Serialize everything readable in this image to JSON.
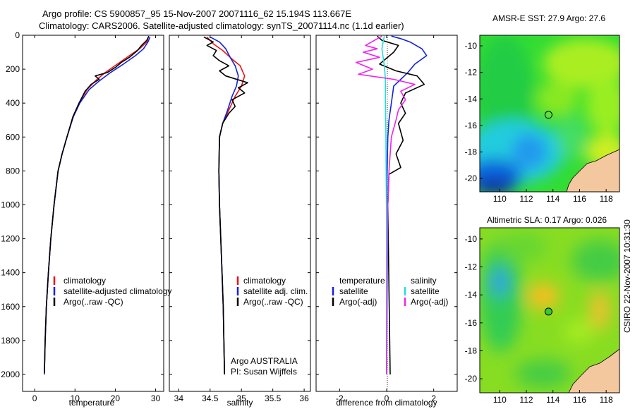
{
  "header": {
    "line1": "Argo profile: CS 5900857_95 15-Nov-2007 20071116_62 15.194S 113.667E",
    "line2": "Climatology: CARS2006. Satellite-adjusted climatology: synTS_20071114.nc (1.1d earlier)"
  },
  "side_text": "CSIRO 22-Nov-2007 10:31:30",
  "colors": {
    "climatology": "#ee1111",
    "satellite": "#1122dd",
    "argo": "#000000",
    "argo_sal": "#ee22ee",
    "sat_sal": "#22dddd"
  },
  "chart_data": [
    {
      "type": "line",
      "panel": "temperature",
      "xlabel": "temperature",
      "ylabel": "",
      "xlim": [
        -3,
        32
      ],
      "ylim": [
        2100,
        0
      ],
      "y_inverted": true,
      "xticks": [
        0,
        10,
        20,
        30
      ],
      "yticks": [
        0,
        200,
        400,
        600,
        800,
        1000,
        1200,
        1400,
        1600,
        1800,
        2000
      ],
      "legend": [
        "climatology",
        "satellite-adjusted climatology",
        "Argo(..raw -QC)"
      ],
      "series": [
        {
          "name": "climatology",
          "color": "#ee1111",
          "points": [
            [
              28.2,
              10
            ],
            [
              27.8,
              40
            ],
            [
              26,
              80
            ],
            [
              23.5,
              120
            ],
            [
              20.5,
              170
            ],
            [
              17.5,
              220
            ],
            [
              15,
              270
            ],
            [
              13,
              320
            ],
            [
              11,
              400
            ],
            [
              9.5,
              480
            ],
            [
              8,
              600
            ],
            [
              6.8,
              700
            ],
            [
              5.8,
              800
            ],
            [
              4.8,
              1000
            ],
            [
              4,
              1200
            ],
            [
              3.4,
              1400
            ],
            [
              2.9,
              1600
            ],
            [
              2.6,
              1800
            ],
            [
              2.4,
              2000
            ]
          ]
        },
        {
          "name": "satellite-adjusted climatology",
          "color": "#1122dd",
          "points": [
            [
              28.6,
              10
            ],
            [
              28.1,
              40
            ],
            [
              27,
              80
            ],
            [
              25,
              120
            ],
            [
              22,
              170
            ],
            [
              18.8,
              220
            ],
            [
              16,
              270
            ],
            [
              13.5,
              320
            ],
            [
              11.2,
              400
            ],
            [
              9.6,
              480
            ],
            [
              8,
              600
            ],
            [
              6.8,
              700
            ],
            [
              5.8,
              800
            ],
            [
              4.8,
              1000
            ],
            [
              4,
              1200
            ],
            [
              3.4,
              1400
            ],
            [
              2.9,
              1600
            ],
            [
              2.6,
              1800
            ],
            [
              2.4,
              2000
            ]
          ]
        },
        {
          "name": "Argo(..raw -QC)",
          "color": "#000000",
          "points": [
            [
              28.3,
              5
            ],
            [
              27.8,
              30
            ],
            [
              26.5,
              60
            ],
            [
              25.5,
              90
            ],
            [
              23.5,
              130
            ],
            [
              21.5,
              160
            ],
            [
              20,
              190
            ],
            [
              18,
              220
            ],
            [
              15,
              240
            ],
            [
              16,
              260
            ],
            [
              14,
              290
            ],
            [
              12.5,
              330
            ],
            [
              11,
              400
            ],
            [
              9.5,
              480
            ],
            [
              8,
              600
            ],
            [
              6.8,
              700
            ],
            [
              5.8,
              800
            ],
            [
              4.8,
              1000
            ],
            [
              4,
              1200
            ],
            [
              3.4,
              1400
            ],
            [
              2.9,
              1600
            ],
            [
              2.6,
              1800
            ],
            [
              2.4,
              1990
            ]
          ]
        }
      ]
    },
    {
      "type": "line",
      "panel": "salinity",
      "xlabel": "salinity",
      "ylabel": "",
      "xlim": [
        33.85,
        36.1
      ],
      "ylim": [
        2100,
        0
      ],
      "y_inverted": true,
      "xticks": [
        34,
        34.5,
        35,
        35.5,
        36
      ],
      "legend": [
        "climatology",
        "satellite adj. clim.",
        "Argo(..raw -QC)"
      ],
      "annotation": [
        "Argo AUSTRALIA",
        "PI: Susan Wijffels"
      ],
      "series": [
        {
          "name": "climatology",
          "color": "#ee1111",
          "points": [
            [
              34.45,
              10
            ],
            [
              34.55,
              50
            ],
            [
              34.7,
              90
            ],
            [
              34.85,
              140
            ],
            [
              34.98,
              180
            ],
            [
              35.05,
              240
            ],
            [
              35.0,
              300
            ],
            [
              34.9,
              360
            ],
            [
              34.8,
              440
            ],
            [
              34.7,
              520
            ],
            [
              34.65,
              600
            ],
            [
              34.64,
              800
            ],
            [
              34.65,
              1000
            ],
            [
              34.67,
              1200
            ],
            [
              34.69,
              1400
            ],
            [
              34.71,
              1600
            ],
            [
              34.72,
              1800
            ],
            [
              34.73,
              2000
            ]
          ]
        },
        {
          "name": "satellite adj. clim.",
          "color": "#1122dd",
          "points": [
            [
              34.5,
              10
            ],
            [
              34.65,
              40
            ],
            [
              34.75,
              80
            ],
            [
              34.82,
              130
            ],
            [
              34.9,
              180
            ],
            [
              34.95,
              240
            ],
            [
              34.92,
              300
            ],
            [
              34.85,
              360
            ],
            [
              34.78,
              440
            ],
            [
              34.7,
              520
            ],
            [
              34.65,
              600
            ],
            [
              34.64,
              800
            ],
            [
              34.65,
              1000
            ],
            [
              34.67,
              1200
            ],
            [
              34.69,
              1400
            ],
            [
              34.71,
              1600
            ],
            [
              34.72,
              1800
            ],
            [
              34.73,
              2000
            ]
          ]
        },
        {
          "name": "Argo(..raw -QC)",
          "color": "#000000",
          "points": [
            [
              34.4,
              10
            ],
            [
              34.55,
              40
            ],
            [
              34.45,
              60
            ],
            [
              34.6,
              90
            ],
            [
              34.55,
              120
            ],
            [
              34.65,
              150
            ],
            [
              34.8,
              180
            ],
            [
              34.65,
              210
            ],
            [
              34.75,
              240
            ],
            [
              35.1,
              280
            ],
            [
              34.95,
              310
            ],
            [
              35.05,
              340
            ],
            [
              34.85,
              380
            ],
            [
              34.9,
              420
            ],
            [
              34.8,
              460
            ],
            [
              34.7,
              520
            ],
            [
              34.65,
              600
            ],
            [
              34.64,
              800
            ],
            [
              34.65,
              1000
            ],
            [
              34.67,
              1200
            ],
            [
              34.69,
              1400
            ],
            [
              34.71,
              1600
            ],
            [
              34.72,
              1800
            ],
            [
              34.73,
              2000
            ]
          ]
        }
      ]
    },
    {
      "type": "line",
      "panel": "difference",
      "xlabel": "difference from climatology",
      "ylabel": "",
      "xlim": [
        -3,
        3
      ],
      "ylim": [
        2100,
        0
      ],
      "y_inverted": true,
      "xticks": [
        -2,
        0,
        2
      ],
      "legend_left": [
        "temperature",
        "satellite",
        "Argo(-adj)"
      ],
      "legend_right": [
        "salinity",
        "satellite",
        "Argo(-adj)"
      ],
      "series": [
        {
          "name": "temperature satellite",
          "color": "#1122dd",
          "points": [
            [
              0.2,
              5
            ],
            [
              0.6,
              20
            ],
            [
              1.0,
              40
            ],
            [
              1.5,
              80
            ],
            [
              1.7,
              120
            ],
            [
              1.2,
              170
            ],
            [
              0.9,
              220
            ],
            [
              0.6,
              260
            ],
            [
              0.3,
              300
            ],
            [
              0.2,
              400
            ],
            [
              0.1,
              500
            ],
            [
              0.05,
              600
            ],
            [
              0.02,
              800
            ],
            [
              0,
              1000
            ],
            [
              0,
              2000
            ]
          ]
        },
        {
          "name": "temperature Argo(-adj)",
          "color": "#000000",
          "points": [
            [
              -0.4,
              5
            ],
            [
              -0.2,
              30
            ],
            [
              0.5,
              60
            ],
            [
              0.3,
              100
            ],
            [
              -0.3,
              170
            ],
            [
              0.4,
              210
            ],
            [
              1.3,
              240
            ],
            [
              1.6,
              290
            ],
            [
              0.8,
              340
            ],
            [
              0.6,
              400
            ],
            [
              0.8,
              460
            ],
            [
              0.5,
              520
            ],
            [
              0.7,
              620
            ],
            [
              0.4,
              700
            ],
            [
              0.6,
              780
            ],
            [
              0.1,
              820
            ],
            [
              0.05,
              1000
            ],
            [
              0.1,
              1500
            ],
            [
              0.15,
              2000
            ]
          ]
        },
        {
          "name": "salinity satellite",
          "color": "#22dddd",
          "points": [
            [
              -0.1,
              5
            ],
            [
              -0.15,
              40
            ],
            [
              -0.2,
              80
            ],
            [
              -0.15,
              130
            ],
            [
              -0.1,
              180
            ],
            [
              -0.05,
              260
            ],
            [
              -0.05,
              400
            ],
            [
              -0.03,
              600
            ],
            [
              -0.02,
              800
            ],
            [
              -0.01,
              1000
            ],
            [
              0,
              1500
            ],
            [
              0,
              2000
            ]
          ]
        },
        {
          "name": "salinity Argo(-adj)",
          "color": "#ee22ee",
          "points": [
            [
              -0.2,
              5
            ],
            [
              -0.9,
              60
            ],
            [
              -0.4,
              80
            ],
            [
              -1.0,
              100
            ],
            [
              -0.3,
              130
            ],
            [
              -1.3,
              160
            ],
            [
              -0.6,
              200
            ],
            [
              -1.2,
              230
            ],
            [
              0.3,
              260
            ],
            [
              1.2,
              290
            ],
            [
              0.6,
              330
            ],
            [
              0.8,
              380
            ],
            [
              0.5,
              440
            ],
            [
              0.4,
              500
            ],
            [
              0.2,
              600
            ],
            [
              0.1,
              800
            ],
            [
              0.05,
              1000
            ],
            [
              0,
              2000
            ]
          ]
        }
      ]
    },
    {
      "type": "heatmap",
      "panel": "sst_map",
      "title": "AMSR-E SST: 27.9 Argo: 27.6",
      "xlim": [
        108.5,
        119
      ],
      "ylim": [
        -21,
        -9.2
      ],
      "xticks": [
        110,
        112,
        114,
        116,
        118
      ],
      "yticks": [
        -10,
        -12,
        -14,
        -16,
        -18,
        -20
      ],
      "argo_position": [
        113.667,
        -15.194
      ]
    },
    {
      "type": "heatmap",
      "panel": "sla_map",
      "title": "Altimetric SLA: 0.17 Argo: 0.026",
      "xlim": [
        108.5,
        119
      ],
      "ylim": [
        -21,
        -9.2
      ],
      "xticks": [
        110,
        112,
        114,
        116,
        118
      ],
      "yticks": [
        -10,
        -12,
        -14,
        -16,
        -18,
        -20
      ],
      "argo_position": [
        113.667,
        -15.194
      ]
    }
  ]
}
